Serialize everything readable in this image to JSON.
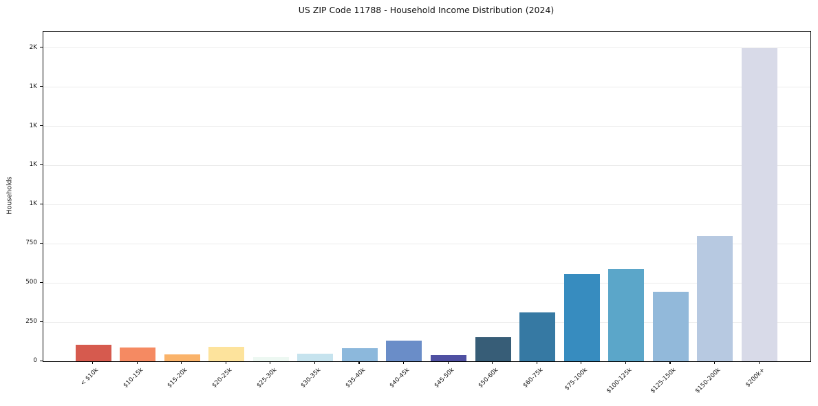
{
  "chart_data": {
    "type": "bar",
    "title": "US ZIP Code 11788 - Household Income Distribution (2024)",
    "xlabel": "",
    "ylabel": "Households",
    "categories": [
      "< $10k",
      "$10-15k",
      "$15-20k",
      "$20-25k",
      "$25-30k",
      "$30-35k",
      "$35-40k",
      "$40-45k",
      "$45-50k",
      "$50-60k",
      "$60-75k",
      "$75-100k",
      "$100-125k",
      "$125-150k",
      "$150-200k",
      "$200k+"
    ],
    "values": [
      105,
      90,
      42,
      92,
      28,
      48,
      84,
      133,
      40,
      152,
      312,
      558,
      590,
      445,
      800,
      2000
    ],
    "bar_colors": [
      "#d65a4e",
      "#f58a62",
      "#fab36a",
      "#fde39c",
      "#edf8f2",
      "#c6e3ee",
      "#8cb8dc",
      "#6a8dc8",
      "#4f50a2",
      "#375d77",
      "#3679a3",
      "#378cbf",
      "#5ba6c9",
      "#92b9da",
      "#b7c9e1",
      "#d8dae8"
    ],
    "y_ticks": [
      {
        "value": 0,
        "label": "0"
      },
      {
        "value": 250,
        "label": "250"
      },
      {
        "value": 500,
        "label": "500"
      },
      {
        "value": 750,
        "label": "750"
      },
      {
        "value": 1000,
        "label": "1K"
      },
      {
        "value": 1250,
        "label": "1K"
      },
      {
        "value": 1500,
        "label": "1K"
      },
      {
        "value": 1750,
        "label": "1K"
      },
      {
        "value": 2000,
        "label": "2K"
      }
    ],
    "ylim": [
      0,
      2104
    ],
    "grid": "horizontal",
    "gridline_color": "#ececec",
    "legend": "none",
    "background": "#ffffff",
    "frame_color": "#000000"
  }
}
